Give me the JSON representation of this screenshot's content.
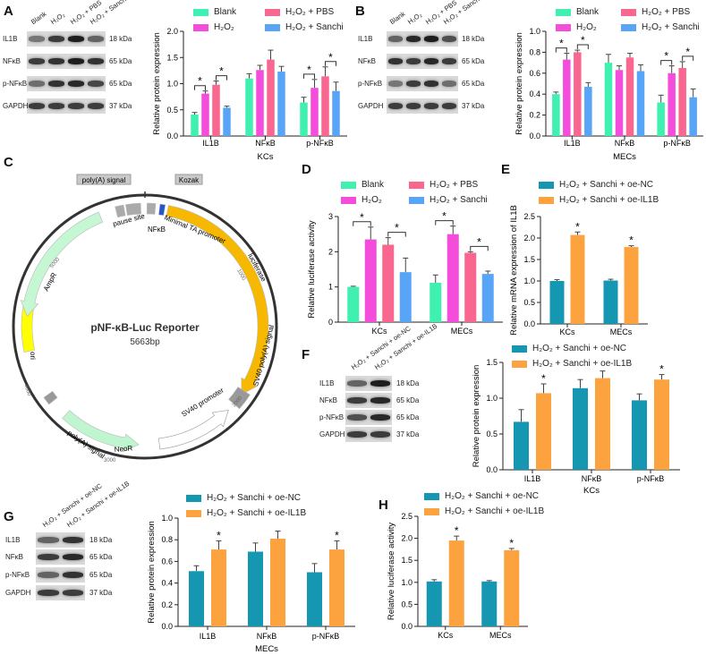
{
  "panel_labels": [
    "A",
    "B",
    "C",
    "D",
    "E",
    "F",
    "G",
    "H"
  ],
  "colors": {
    "blank": "#3ff0b0",
    "h2o2": "#f44ddb",
    "pbs": "#f9668f",
    "sanchi": "#58a5f7",
    "oe_nc": "#1697b1",
    "oe_il1b": "#fca340"
  },
  "legend4": [
    "Blank",
    "H₂O₂",
    "H₂O₂ + PBS",
    "H₂O₂ + Sanchi"
  ],
  "legend2": [
    "H₂O₂ + Sanchi + oe-NC",
    "H₂O₂ + Sanchi + oe-IL1B"
  ],
  "blots": {
    "A": {
      "lanes": [
        "Blank",
        "H₂O₂",
        "H₂O₂ + PBS",
        "H₂O₂ + Sanchi"
      ],
      "rows": [
        {
          "name": "IL1B",
          "kda": "18 kDa"
        },
        {
          "name": "NFκB",
          "kda": "65 kDa"
        },
        {
          "name": "p-NFκB",
          "kda": "65 kDa"
        },
        {
          "name": "GAPDH",
          "kda": "37 kDa"
        }
      ]
    },
    "B": {
      "lanes": [
        "Blank",
        "H₂O₂",
        "H₂O₂ + PBS",
        "H₂O₂ + Sanchi"
      ],
      "rows": [
        {
          "name": "IL1B",
          "kda": "18 kDa"
        },
        {
          "name": "NFκB",
          "kda": "65 kDa"
        },
        {
          "name": "p-NFκB",
          "kda": "65 kDa"
        },
        {
          "name": "GAPDH",
          "kda": "37 kDa"
        }
      ]
    },
    "F": {
      "lanes": [
        "H₂O₂ + Sanchi + oe-NC",
        "H₂O₂ + Sanchi + oe-IL1B"
      ],
      "rows": [
        {
          "name": "IL1B",
          "kda": "18 kDa"
        },
        {
          "name": "NFκB",
          "kda": "65 kDa"
        },
        {
          "name": "p-NFκB",
          "kda": "65 kDa"
        },
        {
          "name": "GAPDH",
          "kda": "37 kDa"
        }
      ]
    },
    "G": {
      "lanes": [
        "H₂O₂ + Sanchi + oe-NC",
        "H₂O₂ + Sanchi + oe-IL1B"
      ],
      "rows": [
        {
          "name": "IL1B",
          "kda": "18 kDa"
        },
        {
          "name": "NFκB",
          "kda": "65 kDa"
        },
        {
          "name": "p-NFκB",
          "kda": "65 kDa"
        },
        {
          "name": "GAPDH",
          "kda": "37 kDa"
        }
      ]
    }
  },
  "plasmid": {
    "name": "pNF-κB-Luc Reporter",
    "size": "5663bp",
    "features": {
      "polya_top": "poly(A) signal",
      "kozak": "Kozak",
      "pause": "pause site",
      "nfkb": "NFκB",
      "minta": "Minimal TA promoter",
      "luc": "luciferase",
      "sv40pa": "SV40 poly(A) signal",
      "sv40p": "SV40 promoter",
      "neor": "NeoR",
      "polya_bottom": "poly(A) signal",
      "ori": "ori",
      "ampr": "AmpR"
    },
    "ticks": [
      "1000",
      "2000",
      "3000",
      "4000",
      "5000"
    ]
  },
  "chart_data": [
    {
      "id": "A",
      "type": "bar",
      "title": "",
      "xlabel": "KCs",
      "ylabel": "Relative protein expression",
      "ylim": [
        0,
        2
      ],
      "yticks": [
        "0.0",
        "0.5",
        "1.0",
        "1.5",
        "2.0"
      ],
      "categories": [
        "IL1B",
        "NFκB",
        "p-NFκB"
      ],
      "series": [
        {
          "name": "Blank",
          "color_key": "blank",
          "values": [
            0.41,
            1.1,
            0.64
          ],
          "errors": [
            0.04,
            0.09,
            0.1
          ]
        },
        {
          "name": "H₂O₂",
          "color_key": "h2o2",
          "values": [
            0.81,
            1.26,
            0.92
          ],
          "errors": [
            0.05,
            0.09,
            0.16
          ]
        },
        {
          "name": "H₂O₂ + PBS",
          "color_key": "pbs",
          "values": [
            0.98,
            1.46,
            1.14
          ],
          "errors": [
            0.07,
            0.18,
            0.18
          ]
        },
        {
          "name": "H₂O₂ + Sanchi",
          "color_key": "sanchi",
          "values": [
            0.54,
            1.23,
            0.86
          ],
          "errors": [
            0.03,
            0.1,
            0.17
          ]
        }
      ],
      "significance": [
        {
          "category": 0,
          "pair": [
            0,
            1
          ],
          "label": "*"
        },
        {
          "category": 0,
          "pair": [
            2,
            3
          ],
          "label": "*"
        },
        {
          "category": 2,
          "pair": [
            0,
            1
          ],
          "label": "*"
        },
        {
          "category": 2,
          "pair": [
            2,
            3
          ],
          "label": "*"
        }
      ]
    },
    {
      "id": "B",
      "type": "bar",
      "title": "",
      "xlabel": "MECs",
      "ylabel": "Relative protein expression",
      "ylim": [
        0,
        1
      ],
      "yticks": [
        "0.0",
        "0.2",
        "0.4",
        "0.6",
        "0.8",
        "1.0"
      ],
      "categories": [
        "IL1B",
        "NFκB",
        "p-NFκB"
      ],
      "series": [
        {
          "name": "Blank",
          "color_key": "blank",
          "values": [
            0.4,
            0.7,
            0.32
          ],
          "errors": [
            0.02,
            0.08,
            0.07
          ]
        },
        {
          "name": "H₂O₂",
          "color_key": "h2o2",
          "values": [
            0.73,
            0.63,
            0.6
          ],
          "errors": [
            0.06,
            0.04,
            0.07
          ]
        },
        {
          "name": "H₂O₂ + PBS",
          "color_key": "pbs",
          "values": [
            0.8,
            0.75,
            0.65
          ],
          "errors": [
            0.02,
            0.04,
            0.06
          ]
        },
        {
          "name": "H₂O₂ + Sanchi",
          "color_key": "sanchi",
          "values": [
            0.47,
            0.62,
            0.37
          ],
          "errors": [
            0.04,
            0.06,
            0.08
          ]
        }
      ],
      "significance": [
        {
          "category": 0,
          "pair": [
            0,
            1
          ],
          "label": "*"
        },
        {
          "category": 0,
          "pair": [
            2,
            3
          ],
          "label": "*"
        },
        {
          "category": 2,
          "pair": [
            0,
            1
          ],
          "label": "*"
        },
        {
          "category": 2,
          "pair": [
            2,
            3
          ],
          "label": "*"
        }
      ]
    },
    {
      "id": "D",
      "type": "bar",
      "title": "",
      "xlabel": "",
      "ylabel": "Relative luciferase activity",
      "ylim": [
        0,
        3
      ],
      "yticks": [
        "0",
        "1",
        "2",
        "3"
      ],
      "categories": [
        "KCs",
        "MECs"
      ],
      "series": [
        {
          "name": "Blank",
          "color_key": "blank",
          "values": [
            1.0,
            1.12
          ],
          "errors": [
            0.02,
            0.22
          ]
        },
        {
          "name": "H₂O₂",
          "color_key": "h2o2",
          "values": [
            2.35,
            2.5
          ],
          "errors": [
            0.35,
            0.23
          ]
        },
        {
          "name": "H₂O₂ + PBS",
          "color_key": "pbs",
          "values": [
            2.2,
            1.97
          ],
          "errors": [
            0.2,
            0.03
          ]
        },
        {
          "name": "H₂O₂ + Sanchi",
          "color_key": "sanchi",
          "values": [
            1.42,
            1.37
          ],
          "errors": [
            0.4,
            0.08
          ]
        }
      ],
      "significance": [
        {
          "category": 0,
          "pair": [
            0,
            1
          ],
          "label": "*"
        },
        {
          "category": 0,
          "pair": [
            2,
            3
          ],
          "label": "*"
        },
        {
          "category": 1,
          "pair": [
            0,
            1
          ],
          "label": "*"
        },
        {
          "category": 1,
          "pair": [
            2,
            3
          ],
          "label": "*"
        }
      ]
    },
    {
      "id": "E",
      "type": "bar",
      "title": "",
      "xlabel": "",
      "ylabel": "Relative mRNA expression of IL1B",
      "ylim": [
        0,
        2.5
      ],
      "yticks": [
        "0.0",
        "0.5",
        "1.0",
        "1.5",
        "2.0",
        "2.5"
      ],
      "categories": [
        "KCs",
        "MECs"
      ],
      "series": [
        {
          "name": "H₂O₂ + Sanchi + oe-NC",
          "color_key": "oe_nc",
          "values": [
            1.0,
            1.01
          ],
          "errors": [
            0.03,
            0.03
          ]
        },
        {
          "name": "H₂O₂ + Sanchi + oe-IL1B",
          "color_key": "oe_il1b",
          "values": [
            2.07,
            1.79
          ],
          "errors": [
            0.07,
            0.03
          ],
          "stars": [
            "*",
            "*"
          ]
        }
      ]
    },
    {
      "id": "F",
      "type": "bar",
      "title": "",
      "xlabel": "KCs",
      "ylabel": "Relative protein expression",
      "ylim": [
        0,
        1.5
      ],
      "yticks": [
        "0.0",
        "0.5",
        "1.0",
        "1.5"
      ],
      "categories": [
        "IL1B",
        "NFκB",
        "p-NFκB"
      ],
      "series": [
        {
          "name": "H₂O₂ + Sanchi + oe-NC",
          "color_key": "oe_nc",
          "values": [
            0.67,
            1.14,
            0.97
          ],
          "errors": [
            0.17,
            0.12,
            0.09
          ]
        },
        {
          "name": "H₂O₂ + Sanchi + oe-IL1B",
          "color_key": "oe_il1b",
          "values": [
            1.07,
            1.28,
            1.26
          ],
          "errors": [
            0.13,
            0.1,
            0.07
          ],
          "stars": [
            "*",
            "",
            "*"
          ]
        }
      ]
    },
    {
      "id": "G",
      "type": "bar",
      "title": "",
      "xlabel": "MECs",
      "ylabel": "Relative protein expression",
      "ylim": [
        0,
        1
      ],
      "yticks": [
        "0.0",
        "0.2",
        "0.4",
        "0.6",
        "0.8",
        "1.0"
      ],
      "categories": [
        "IL1B",
        "NFκB",
        "p-NFκB"
      ],
      "series": [
        {
          "name": "H₂O₂ + Sanchi + oe-NC",
          "color_key": "oe_nc",
          "values": [
            0.51,
            0.69,
            0.5
          ],
          "errors": [
            0.05,
            0.08,
            0.08
          ]
        },
        {
          "name": "H₂O₂ + Sanchi + oe-IL1B",
          "color_key": "oe_il1b",
          "values": [
            0.71,
            0.81,
            0.71
          ],
          "errors": [
            0.08,
            0.07,
            0.08
          ],
          "stars": [
            "*",
            "",
            "*"
          ]
        }
      ]
    },
    {
      "id": "H",
      "type": "bar",
      "title": "",
      "xlabel": "",
      "ylabel": "Relative luciferase activity",
      "ylim": [
        0,
        2.5
      ],
      "yticks": [
        "0.0",
        "0.5",
        "1.0",
        "1.5",
        "2.0",
        "2.5"
      ],
      "categories": [
        "KCs",
        "MECs"
      ],
      "series": [
        {
          "name": "H₂O₂ + Sanchi + oe-NC",
          "color_key": "oe_nc",
          "values": [
            1.02,
            1.02
          ],
          "errors": [
            0.04,
            0.02
          ]
        },
        {
          "name": "H₂O₂ + Sanchi + oe-IL1B",
          "color_key": "oe_il1b",
          "values": [
            1.95,
            1.73
          ],
          "errors": [
            0.1,
            0.04
          ],
          "stars": [
            "*",
            "*"
          ]
        }
      ]
    }
  ]
}
